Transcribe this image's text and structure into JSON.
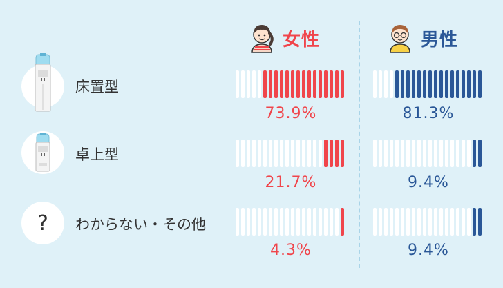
{
  "colors": {
    "background": "#dff1f8",
    "female": "#f0454b",
    "male": "#2a5797",
    "empty_bar": "#ffffff"
  },
  "headers": {
    "female": {
      "label": "女性",
      "icon": "girl-avatar-icon"
    },
    "male": {
      "label": "男性",
      "icon": "boy-avatar-icon"
    }
  },
  "rows": [
    {
      "label": "床置型",
      "icon": "floor-water-dispenser-icon"
    },
    {
      "label": "卓上型",
      "icon": "tabletop-water-dispenser-icon"
    },
    {
      "label": "わからない・その他",
      "icon": "question-mark-icon",
      "glyph": "?"
    }
  ],
  "chart_data": {
    "type": "bar",
    "style": "segmented percentage bars (20 segments each)",
    "categories": [
      "床置型",
      "卓上型",
      "わからない・その他"
    ],
    "series": [
      {
        "name": "女性",
        "values": [
          73.9,
          21.7,
          4.3
        ],
        "labels": [
          "73.9%",
          "21.7%",
          "4.3%"
        ],
        "color": "#f0454b"
      },
      {
        "name": "男性",
        "values": [
          81.3,
          9.4,
          9.4
        ],
        "labels": [
          "81.3%",
          "9.4%",
          "9.4%"
        ],
        "color": "#2a5797"
      }
    ],
    "ylim": [
      0,
      100
    ],
    "segments": 20
  }
}
